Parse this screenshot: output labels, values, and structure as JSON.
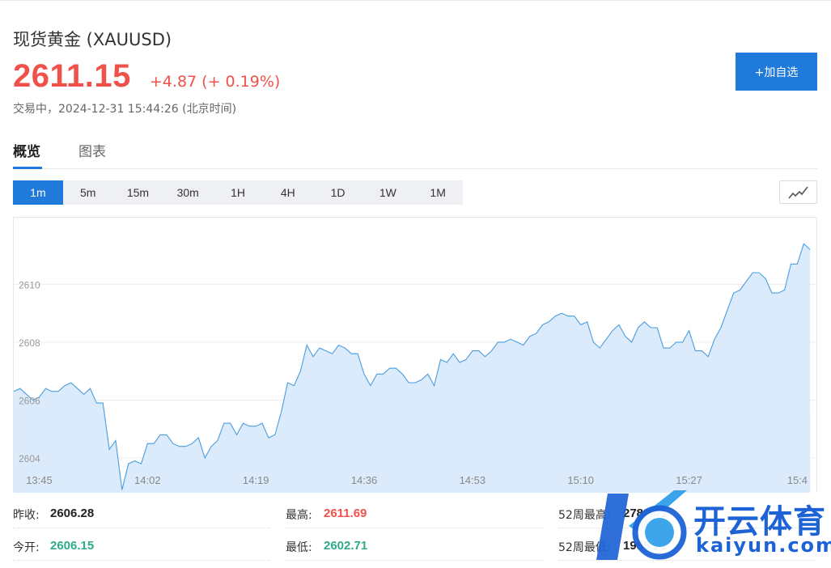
{
  "header": {
    "title": "现货黄金 (XAUUSD)",
    "price": "2611.15",
    "change": "+4.87 (+ 0.19%)",
    "trade_time": "交易中，2024-12-31 15:44:26 (北京时间)",
    "add_button": "+加自选"
  },
  "tabs": [
    {
      "label": "概览",
      "active": true
    },
    {
      "label": "图表",
      "active": false
    }
  ],
  "periods": [
    {
      "label": "1m",
      "active": true
    },
    {
      "label": "5m",
      "active": false
    },
    {
      "label": "15m",
      "active": false
    },
    {
      "label": "30m",
      "active": false
    },
    {
      "label": "1H",
      "active": false
    },
    {
      "label": "4H",
      "active": false
    },
    {
      "label": "1D",
      "active": false
    },
    {
      "label": "1W",
      "active": false
    },
    {
      "label": "1M",
      "active": false
    }
  ],
  "chart_type_icon": "line-chart-icon",
  "colors": {
    "accent": "#1f7ad9",
    "up": "#f0514b",
    "down": "#2eab87",
    "line": "#4a9de0",
    "area": "#dcebfb"
  },
  "chart_data": {
    "type": "area",
    "y_ticks": [
      "2604",
      "2606",
      "2608",
      "2610"
    ],
    "ylim": [
      2602.8,
      2612.3
    ],
    "x_ticks": [
      "13:45",
      "14:02",
      "14:19",
      "14:36",
      "14:53",
      "15:10",
      "15:27",
      "15:4"
    ],
    "x_tick_index": [
      4,
      21,
      38,
      55,
      72,
      89,
      106,
      123
    ],
    "x_range": [
      0,
      126
    ],
    "grid": true,
    "values": [
      2606.3,
      2606.4,
      2606.2,
      2606.0,
      2606.1,
      2606.4,
      2606.3,
      2606.3,
      2606.5,
      2606.6,
      2606.4,
      2606.2,
      2606.4,
      2605.9,
      2605.9,
      2604.3,
      2604.6,
      2602.9,
      2603.8,
      2603.9,
      2603.8,
      2604.5,
      2604.5,
      2604.8,
      2604.8,
      2604.5,
      2604.4,
      2604.4,
      2604.5,
      2604.7,
      2604.0,
      2604.4,
      2604.6,
      2605.2,
      2605.2,
      2604.8,
      2605.2,
      2605.1,
      2605.1,
      2605.2,
      2604.7,
      2604.8,
      2605.6,
      2606.6,
      2606.5,
      2607.0,
      2607.9,
      2607.5,
      2607.8,
      2607.7,
      2607.6,
      2607.9,
      2607.8,
      2607.6,
      2607.6,
      2606.9,
      2606.5,
      2606.9,
      2606.9,
      2607.1,
      2607.1,
      2606.9,
      2606.6,
      2606.6,
      2606.7,
      2606.9,
      2606.5,
      2607.4,
      2607.3,
      2607.6,
      2607.3,
      2607.4,
      2607.7,
      2607.7,
      2607.5,
      2607.7,
      2608.0,
      2608.0,
      2608.1,
      2608.0,
      2607.9,
      2608.2,
      2608.3,
      2608.6,
      2608.7,
      2608.9,
      2609.0,
      2608.9,
      2608.9,
      2608.6,
      2608.7,
      2608.0,
      2607.8,
      2608.1,
      2608.4,
      2608.6,
      2608.2,
      2608.0,
      2608.5,
      2608.7,
      2608.5,
      2608.5,
      2607.8,
      2607.8,
      2608.0,
      2608.0,
      2608.4,
      2607.7,
      2607.7,
      2607.5,
      2608.1,
      2608.5,
      2609.1,
      2609.7,
      2609.8,
      2610.1,
      2610.4,
      2610.4,
      2610.2,
      2609.7,
      2609.7,
      2609.8,
      2610.7,
      2610.7,
      2611.4,
      2611.2
    ]
  },
  "stats": {
    "prev_close_label": "昨收:",
    "prev_close": "2606.28",
    "open_label": "今开:",
    "open": "2606.15",
    "high_label": "最高:",
    "high": "2611.69",
    "low_label": "最低:",
    "low": "2602.71",
    "w52_high_label": "52周最高:",
    "w52_high": "2789.61",
    "w52_low_label": "52周最低:",
    "w52_low": "1985.71"
  },
  "watermark": {
    "brand": "开云体育",
    "domain": "kaiyun.com"
  }
}
